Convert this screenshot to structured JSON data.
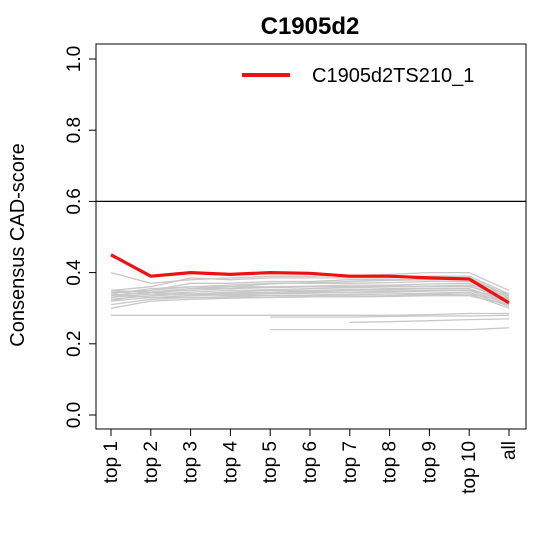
{
  "chart_data": {
    "type": "line",
    "title": "C1905d2",
    "xlabel": "",
    "ylabel": "Consensus CAD-score",
    "categories": [
      "top 1",
      "top 2",
      "top 3",
      "top 4",
      "top 5",
      "top 6",
      "top 7",
      "top 8",
      "top 9",
      "top 10",
      "all"
    ],
    "ylim": [
      0,
      1
    ],
    "yticks": [
      "0.0",
      "0.2",
      "0.4",
      "0.6",
      "0.8",
      "1.0"
    ],
    "reference_line": 0.6,
    "grid": false,
    "legend": {
      "position": "top-right",
      "entries": [
        "C1905d2TS210_1"
      ]
    },
    "highlight_color": "#ee1111",
    "background_color": "#c8c8c8",
    "series": [
      {
        "name": "C1905d2TS210_1",
        "highlight": true,
        "values": [
          0.45,
          0.39,
          0.4,
          0.395,
          0.4,
          0.398,
          0.39,
          0.39,
          0.385,
          0.382,
          0.315
        ]
      },
      {
        "values": [
          0.4,
          0.37,
          0.38,
          0.385,
          0.39,
          0.39,
          0.392,
          0.395,
          0.4,
          0.4,
          0.35
        ]
      },
      {
        "values": [
          0.35,
          0.36,
          0.385,
          0.38,
          0.385,
          0.385,
          0.385,
          0.385,
          0.39,
          0.39,
          0.34
        ]
      },
      {
        "values": [
          0.345,
          0.35,
          0.37,
          0.37,
          0.375,
          0.375,
          0.38,
          0.38,
          0.38,
          0.385,
          0.335
        ]
      },
      {
        "values": [
          0.34,
          0.355,
          0.36,
          0.365,
          0.37,
          0.37,
          0.37,
          0.372,
          0.375,
          0.375,
          0.33
        ]
      },
      {
        "values": [
          0.335,
          0.345,
          0.35,
          0.355,
          0.36,
          0.362,
          0.365,
          0.365,
          0.368,
          0.37,
          0.325
        ]
      },
      {
        "values": [
          0.33,
          0.34,
          0.345,
          0.35,
          0.352,
          0.355,
          0.357,
          0.36,
          0.36,
          0.362,
          0.322
        ]
      },
      {
        "values": [
          0.325,
          0.335,
          0.34,
          0.342,
          0.345,
          0.348,
          0.35,
          0.352,
          0.355,
          0.355,
          0.318
        ]
      },
      {
        "values": [
          0.32,
          0.33,
          0.335,
          0.338,
          0.34,
          0.342,
          0.345,
          0.345,
          0.348,
          0.35,
          0.31
        ]
      },
      {
        "values": [
          0.31,
          0.325,
          0.33,
          0.332,
          0.335,
          0.337,
          0.34,
          0.34,
          0.342,
          0.345,
          0.305
        ]
      },
      {
        "values": [
          0.3,
          0.32,
          0.325,
          0.328,
          0.33,
          0.332,
          0.334,
          0.335,
          0.338,
          0.34,
          0.3
        ]
      },
      {
        "values": [
          0.35,
          0.345,
          0.34,
          0.335,
          0.335,
          0.335,
          0.338,
          0.34,
          0.34,
          0.34,
          0.32
        ]
      },
      {
        "values": [
          0.345,
          0.34,
          0.338,
          0.34,
          0.342,
          0.345,
          0.345,
          0.348,
          0.35,
          0.35,
          0.328
        ]
      },
      {
        "values": [
          0.34,
          0.33,
          0.33,
          0.33,
          0.33,
          0.332,
          0.332,
          0.333,
          0.335,
          0.335,
          0.31
        ]
      },
      {
        "values": [
          0.33,
          0.35,
          0.36,
          0.36,
          0.36,
          0.36,
          0.36,
          0.362,
          0.362,
          0.365,
          0.34
        ]
      },
      {
        "values": [
          0.32,
          0.345,
          0.355,
          0.355,
          0.358,
          0.36,
          0.36,
          0.36,
          0.36,
          0.36,
          0.335
        ]
      },
      {
        "values": [
          0.28,
          0.28,
          0.28,
          0.28,
          0.28,
          0.28,
          0.28,
          0.28,
          0.282,
          0.285,
          0.285
        ]
      },
      {
        "values": [
          null,
          null,
          null,
          null,
          0.24,
          0.24,
          0.24,
          0.24,
          0.24,
          0.24,
          0.245
        ]
      },
      {
        "values": [
          null,
          null,
          null,
          null,
          null,
          null,
          0.26,
          0.262,
          0.265,
          0.268,
          0.27
        ]
      },
      {
        "values": [
          null,
          null,
          null,
          null,
          0.275,
          0.275,
          0.275,
          0.277,
          0.278,
          0.278,
          0.28
        ]
      },
      {
        "values": [
          null,
          0.345,
          0.355,
          0.36,
          0.368,
          0.372,
          0.375,
          0.378,
          0.38,
          0.38,
          0.335
        ]
      },
      {
        "values": [
          null,
          0.335,
          0.34,
          0.345,
          0.35,
          0.35,
          0.352,
          0.355,
          0.355,
          0.355,
          0.315
        ]
      }
    ]
  }
}
